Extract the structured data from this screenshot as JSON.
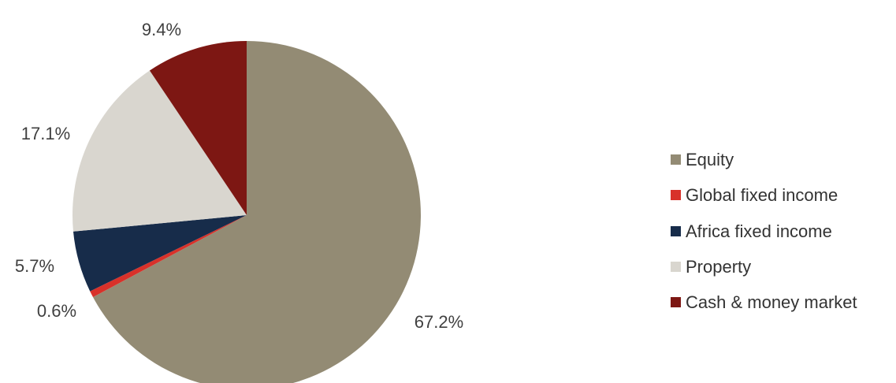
{
  "chart_data": {
    "type": "pie",
    "title": "",
    "legend_position": "right",
    "start_angle_deg": 0,
    "direction": "clockwise",
    "slices": [
      {
        "label": "Equity",
        "value": 67.2,
        "value_label": "67.2%",
        "color": "#938b74"
      },
      {
        "label": "Global fixed income",
        "value": 0.6,
        "value_label": "0.6%",
        "color": "#d8312a"
      },
      {
        "label": "Africa fixed income",
        "value": 5.7,
        "value_label": "5.7%",
        "color": "#172c4a"
      },
      {
        "label": "Property",
        "value": 17.1,
        "value_label": "17.1%",
        "color": "#d9d6cf"
      },
      {
        "label": "Cash & money market",
        "value": 9.4,
        "value_label": "9.4%",
        "color": "#7d1713"
      }
    ]
  }
}
